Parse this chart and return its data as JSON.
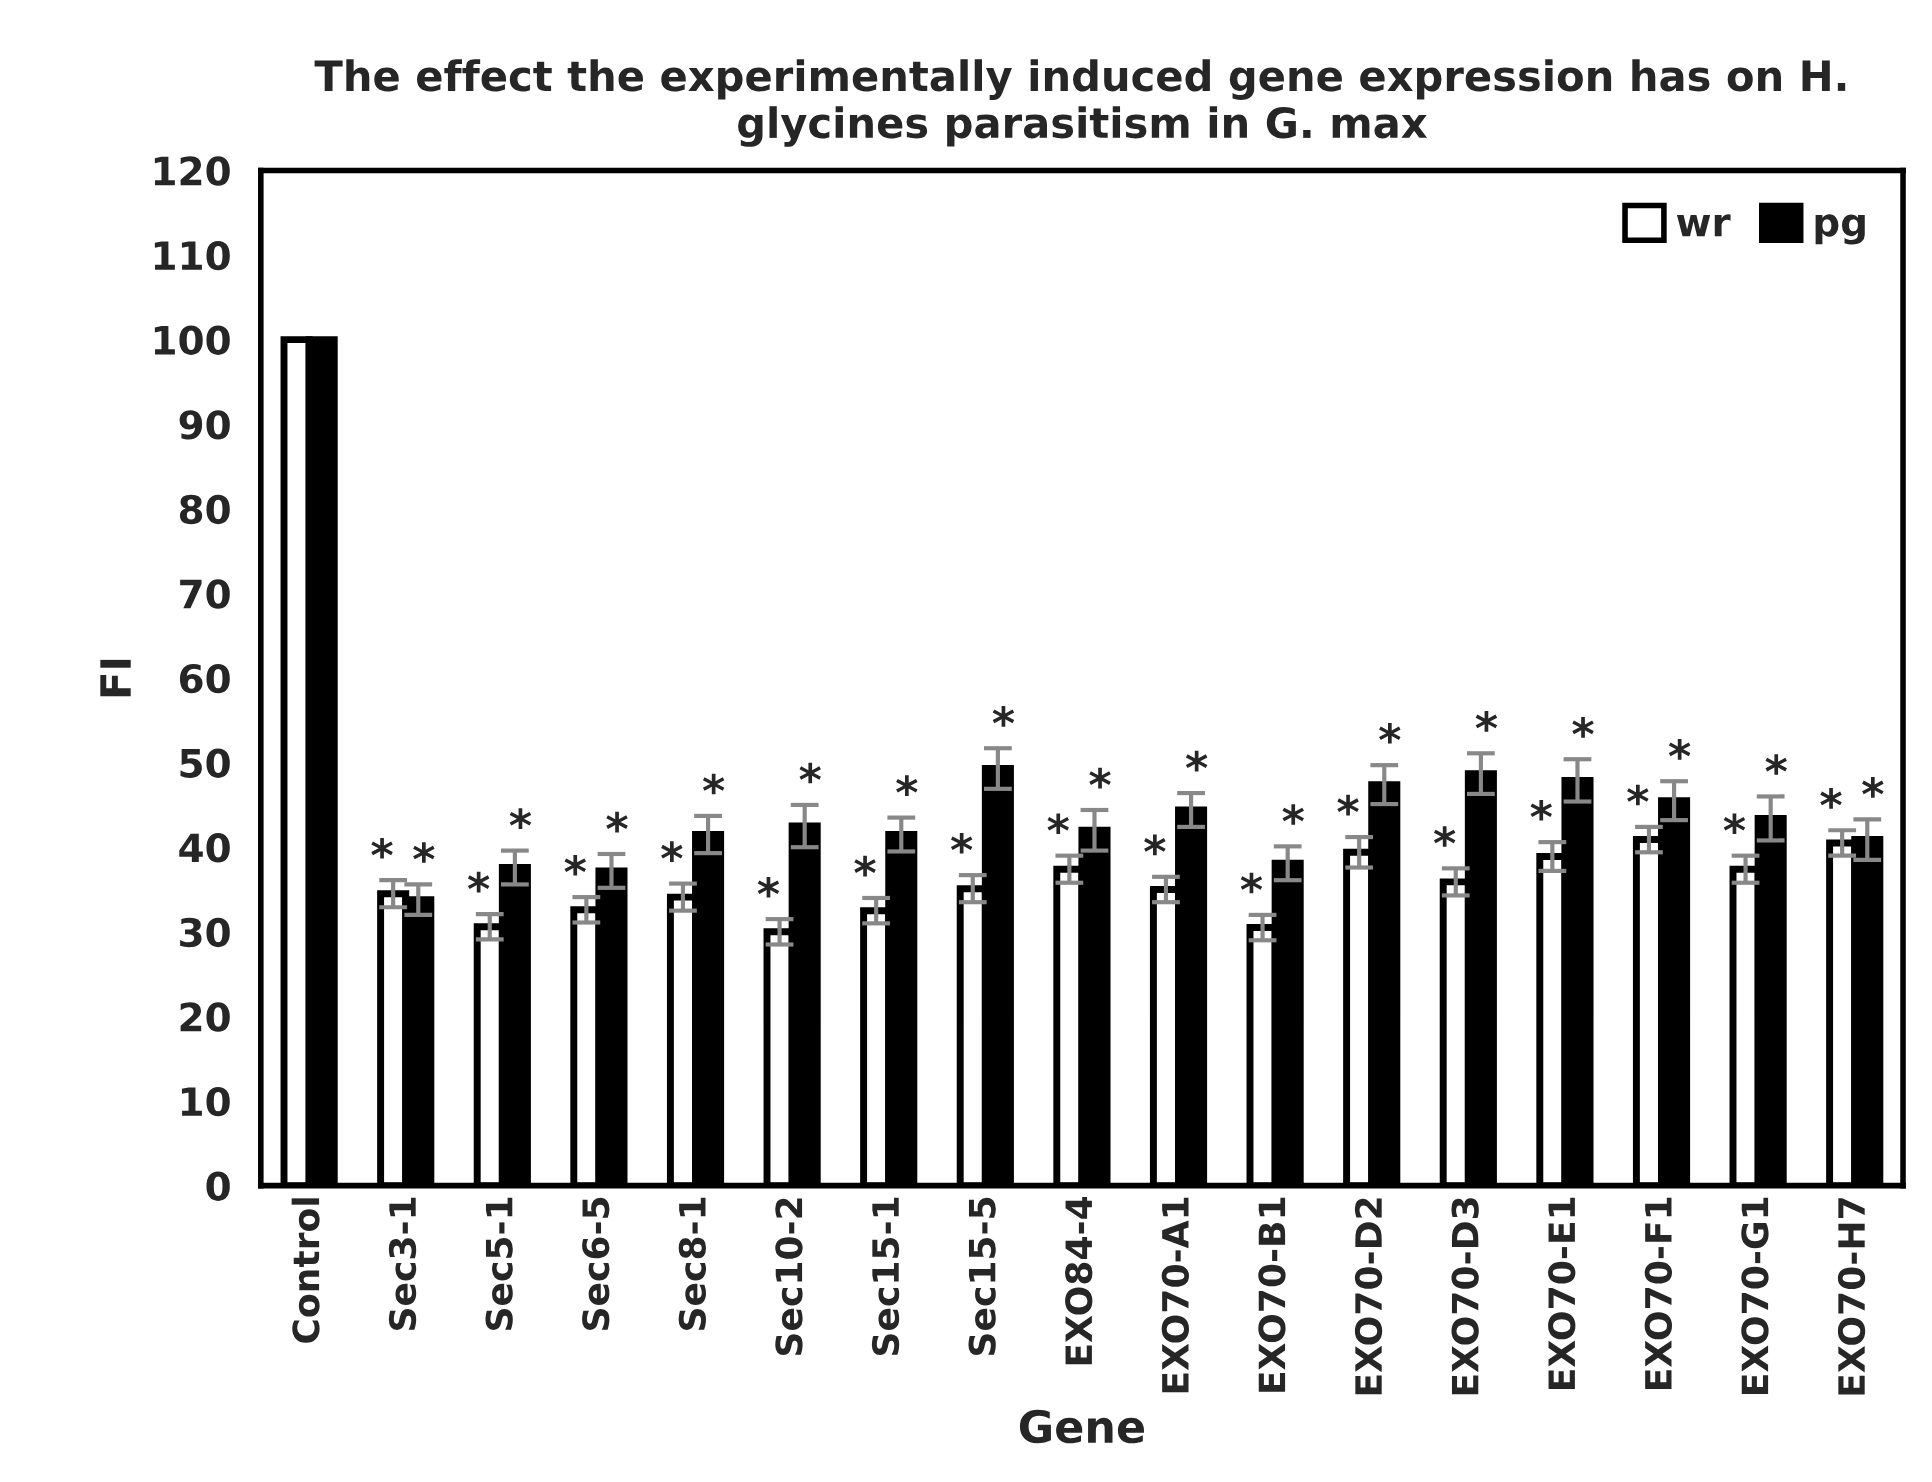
{
  "chart_data": {
    "type": "bar",
    "title": "The effect the experimentally induced gene expression has on H. glycines parasitism in G. max",
    "xlabel": "Gene",
    "ylabel": "FI",
    "categories": [
      "Control",
      "Sec3-1",
      "Sec5-1",
      "Sec6-5",
      "Sec8-1",
      "Sec10-2",
      "Sec15-1",
      "Sec15-5",
      "EXO84-4",
      "EXO70-A1",
      "EXO70-B1",
      "EXO70-D2",
      "EXO70-D3",
      "EXO70-E1",
      "EXO70-F1",
      "EXO70-G1",
      "EXO70-H7"
    ],
    "series": [
      {
        "name": "wr",
        "color": "#ffffff",
        "values": [
          100,
          34.5,
          30.6,
          32.6,
          34.1,
          30.0,
          32.5,
          35.1,
          37.4,
          35.0,
          30.5,
          39.4,
          35.9,
          38.9,
          40.9,
          37.4,
          40.5
        ],
        "errors": [
          null,
          1.6,
          1.5,
          1.5,
          1.6,
          1.5,
          1.5,
          1.6,
          1.6,
          1.5,
          1.5,
          1.8,
          1.6,
          1.7,
          1.5,
          1.6,
          1.5
        ]
      },
      {
        "name": "pg",
        "color": "#000000",
        "values": [
          100,
          33.8,
          37.6,
          37.2,
          41.5,
          42.5,
          41.5,
          49.3,
          42.0,
          44.4,
          38.1,
          47.4,
          48.7,
          47.9,
          45.5,
          43.4,
          40.9
        ],
        "errors": [
          null,
          1.8,
          2.0,
          2.0,
          2.2,
          2.5,
          2.0,
          2.4,
          2.4,
          2.0,
          2.0,
          2.3,
          2.4,
          2.5,
          2.3,
          2.6,
          2.4
        ]
      }
    ],
    "annotations": [
      {
        "text": "*",
        "x": "Sec3-1",
        "y": 36.1
      },
      {
        "text": "*",
        "x": "Sec5-1",
        "y": 32.1
      },
      {
        "text": "*",
        "x": "Sec6-5",
        "y": 34.1
      },
      {
        "text": "*",
        "x": "Sec8-1",
        "y": 35.7
      },
      {
        "text": "*",
        "x": "Sec10-2",
        "y": 31.5
      },
      {
        "text": "*",
        "x": "Sec15-1",
        "y": 34.0
      },
      {
        "text": "*",
        "x": "Sec15-5",
        "y": 36.7
      },
      {
        "text": "*",
        "x": "EXO84-4",
        "y": 39.0
      },
      {
        "text": "*",
        "x": "EXO70-A1",
        "y": 36.5
      },
      {
        "text": "*",
        "x": "EXO70-B1",
        "y": 32.0
      },
      {
        "text": "*",
        "x": "EXO70-D2",
        "y": 41.2
      },
      {
        "text": "*",
        "x": "EXO70-D3",
        "y": 37.5
      },
      {
        "text": "*",
        "x": "EXO70-E1",
        "y": 40.6
      },
      {
        "text": "*",
        "x": "EXO70-F1",
        "y": 42.4
      },
      {
        "text": "*",
        "x": "EXO70-G1",
        "y": 39.0
      },
      {
        "text": "*",
        "x": "EXO70-H7",
        "y": 42.0
      },
      {
        "text": "*",
        "x": "Sec3-1",
        "y": 35.6
      },
      {
        "text": "*",
        "x": "Sec5-1",
        "y": 39.6
      },
      {
        "text": "*",
        "x": "Sec6-5",
        "y": 39.2
      },
      {
        "text": "*",
        "x": "Sec8-1",
        "y": 43.7
      },
      {
        "text": "*",
        "x": "Sec10-2",
        "y": 45.0
      },
      {
        "text": "*",
        "x": "Sec15-1",
        "y": 43.5
      },
      {
        "text": "*",
        "x": "Sec15-5",
        "y": 51.7
      },
      {
        "text": "*",
        "x": "EXO84-4",
        "y": 44.4
      },
      {
        "text": "*",
        "x": "EXO70-A1",
        "y": 46.4
      },
      {
        "text": "*",
        "x": "EXO70-B1",
        "y": 40.1
      },
      {
        "text": "*",
        "x": "EXO70-D2",
        "y": 49.7
      },
      {
        "text": "*",
        "x": "EXO70-D3",
        "y": 51.1
      },
      {
        "text": "*",
        "x": "EXO70-E1",
        "y": 50.4
      },
      {
        "text": "*",
        "x": "EXO70-F1",
        "y": 47.8
      },
      {
        "text": "*",
        "x": "EXO70-G1",
        "y": 46.0
      },
      {
        "text": "*",
        "x": "EXO70-H7",
        "y": 43.3
      }
    ],
    "ylim": [
      0,
      120
    ],
    "yticks": [
      0,
      10,
      20,
      30,
      40,
      50,
      60,
      70,
      80,
      90,
      100,
      110,
      120
    ],
    "grid": false,
    "legend": "top right"
  }
}
